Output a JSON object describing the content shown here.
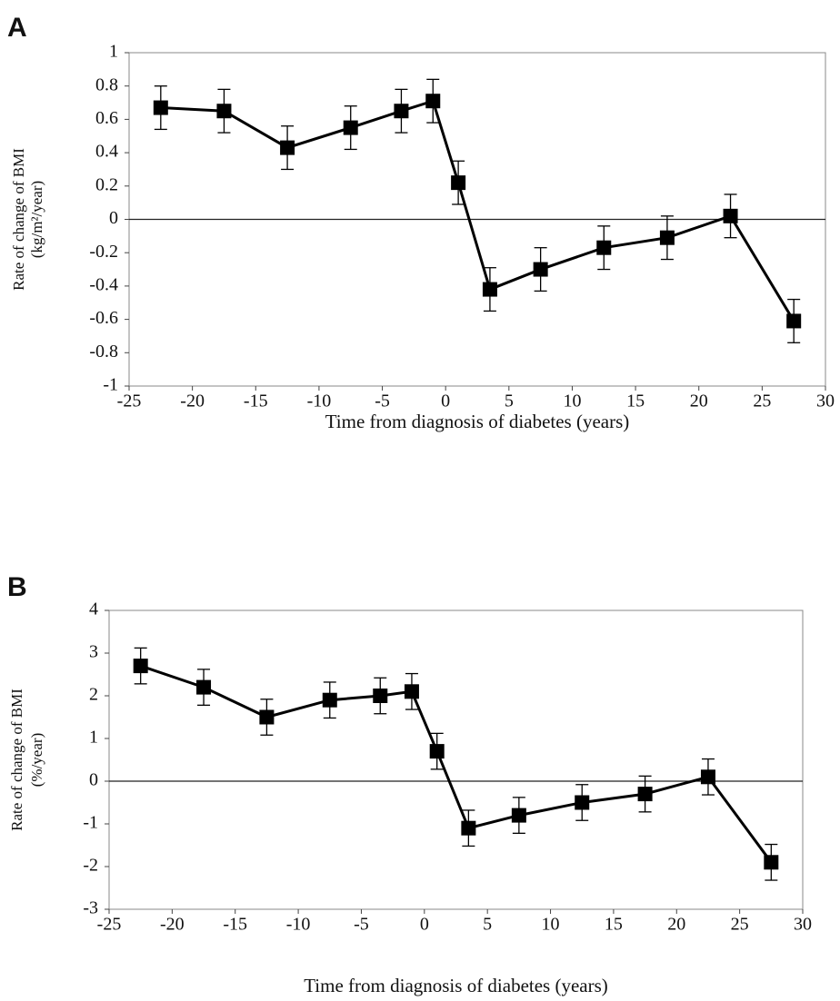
{
  "chart_data": [
    {
      "type": "line",
      "panel": "A",
      "ylabel": [
        "Rate of change of BMI",
        "(kg/m²/year)"
      ],
      "xlabel": "Time from diagnosis of diabetes (years)",
      "x": [
        -22.5,
        -17.5,
        -12.5,
        -7.5,
        -3.5,
        -1,
        1,
        3.5,
        7.5,
        12.5,
        17.5,
        22.5,
        27.5
      ],
      "values": [
        0.67,
        0.65,
        0.43,
        0.55,
        0.65,
        0.71,
        0.22,
        -0.42,
        -0.3,
        -0.17,
        -0.11,
        0.02,
        -0.61
      ],
      "errors": [
        0.13,
        0.13,
        0.13,
        0.13,
        0.13,
        0.13,
        0.13,
        0.13,
        0.13,
        0.13,
        0.13,
        0.13,
        0.13
      ],
      "color": "#000000",
      "xlim": [
        -25,
        30
      ],
      "xticks": [
        -25,
        -20,
        -15,
        -10,
        -5,
        0,
        5,
        10,
        15,
        20,
        25,
        30
      ],
      "ylim": [
        -1,
        1
      ],
      "yticks": [
        -1,
        -0.8,
        -0.6,
        -0.4,
        -0.2,
        0,
        0.2,
        0.4,
        0.6,
        0.8,
        1
      ]
    },
    {
      "type": "line",
      "panel": "B",
      "ylabel": [
        "Rate of  change of  BMI",
        "(%/year)"
      ],
      "xlabel": "Time from diagnosis of diabetes (years)",
      "x": [
        -22.5,
        -17.5,
        -12.5,
        -7.5,
        -3.5,
        -1,
        1,
        3.5,
        7.5,
        12.5,
        17.5,
        22.5,
        27.5
      ],
      "values": [
        2.7,
        2.2,
        1.5,
        1.9,
        2.0,
        2.1,
        0.7,
        -1.1,
        -0.8,
        -0.5,
        -0.3,
        0.1,
        -1.9
      ],
      "errors": [
        0.42,
        0.42,
        0.42,
        0.42,
        0.42,
        0.42,
        0.42,
        0.42,
        0.42,
        0.42,
        0.42,
        0.42,
        0.42
      ],
      "color": "#000000",
      "xlim": [
        -25,
        30
      ],
      "xticks": [
        -25,
        -20,
        -15,
        -10,
        -5,
        0,
        5,
        10,
        15,
        20,
        25,
        30
      ],
      "ylim": [
        -3,
        4
      ],
      "yticks": [
        -3,
        -2,
        -1,
        0,
        1,
        2,
        3,
        4
      ]
    }
  ]
}
